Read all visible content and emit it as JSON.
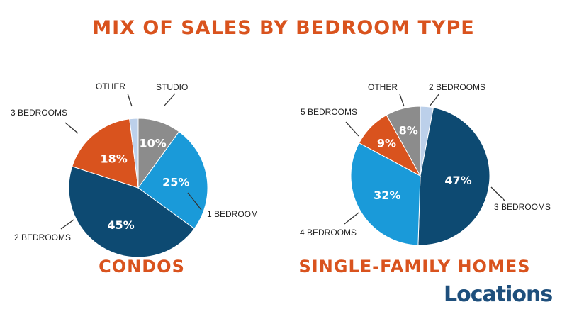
{
  "title": "MIX OF SALES BY BEDROOM TYPE",
  "logo_text": "Locations",
  "colors": {
    "title": "#d9531e",
    "studio": "#8c8c8c",
    "one_bedroom": "#1a9ad9",
    "two_bedrooms_condo": "#0d4a72",
    "three_bedrooms_condo": "#d9531e",
    "other": "#bcd0ea",
    "logo": "#1e4f7c"
  },
  "chart_data": [
    {
      "type": "pie",
      "title": "CONDOS",
      "slices": [
        {
          "label": "STUDIO",
          "value": 10,
          "display": "10%",
          "color": "#8c8c8c"
        },
        {
          "label": "1 BEDROOM",
          "value": 25,
          "display": "25%",
          "color": "#1a9ad9"
        },
        {
          "label": "2 BEDROOMS",
          "value": 45,
          "display": "45%",
          "color": "#0d4a72"
        },
        {
          "label": "3 BEDROOMS",
          "value": 18,
          "display": "18%",
          "color": "#d9531e"
        },
        {
          "label": "OTHER",
          "value": 2,
          "display": "",
          "color": "#bcd0ea"
        }
      ]
    },
    {
      "type": "pie",
      "title": "SINGLE-FAMILY HOMES",
      "slices": [
        {
          "label": "2 BEDROOMS",
          "value": 3,
          "display": "",
          "color": "#bcd0ea"
        },
        {
          "label": "3 BEDROOMS",
          "value": 47,
          "display": "47%",
          "color": "#0d4a72"
        },
        {
          "label": "4 BEDROOMS",
          "value": 32,
          "display": "32%",
          "color": "#1a9ad9"
        },
        {
          "label": "5 BEDROOMS",
          "value": 9,
          "display": "9%",
          "color": "#d9531e"
        },
        {
          "label": "OTHER",
          "value": 8,
          "display": "8%",
          "color": "#8c8c8c"
        }
      ]
    }
  ]
}
